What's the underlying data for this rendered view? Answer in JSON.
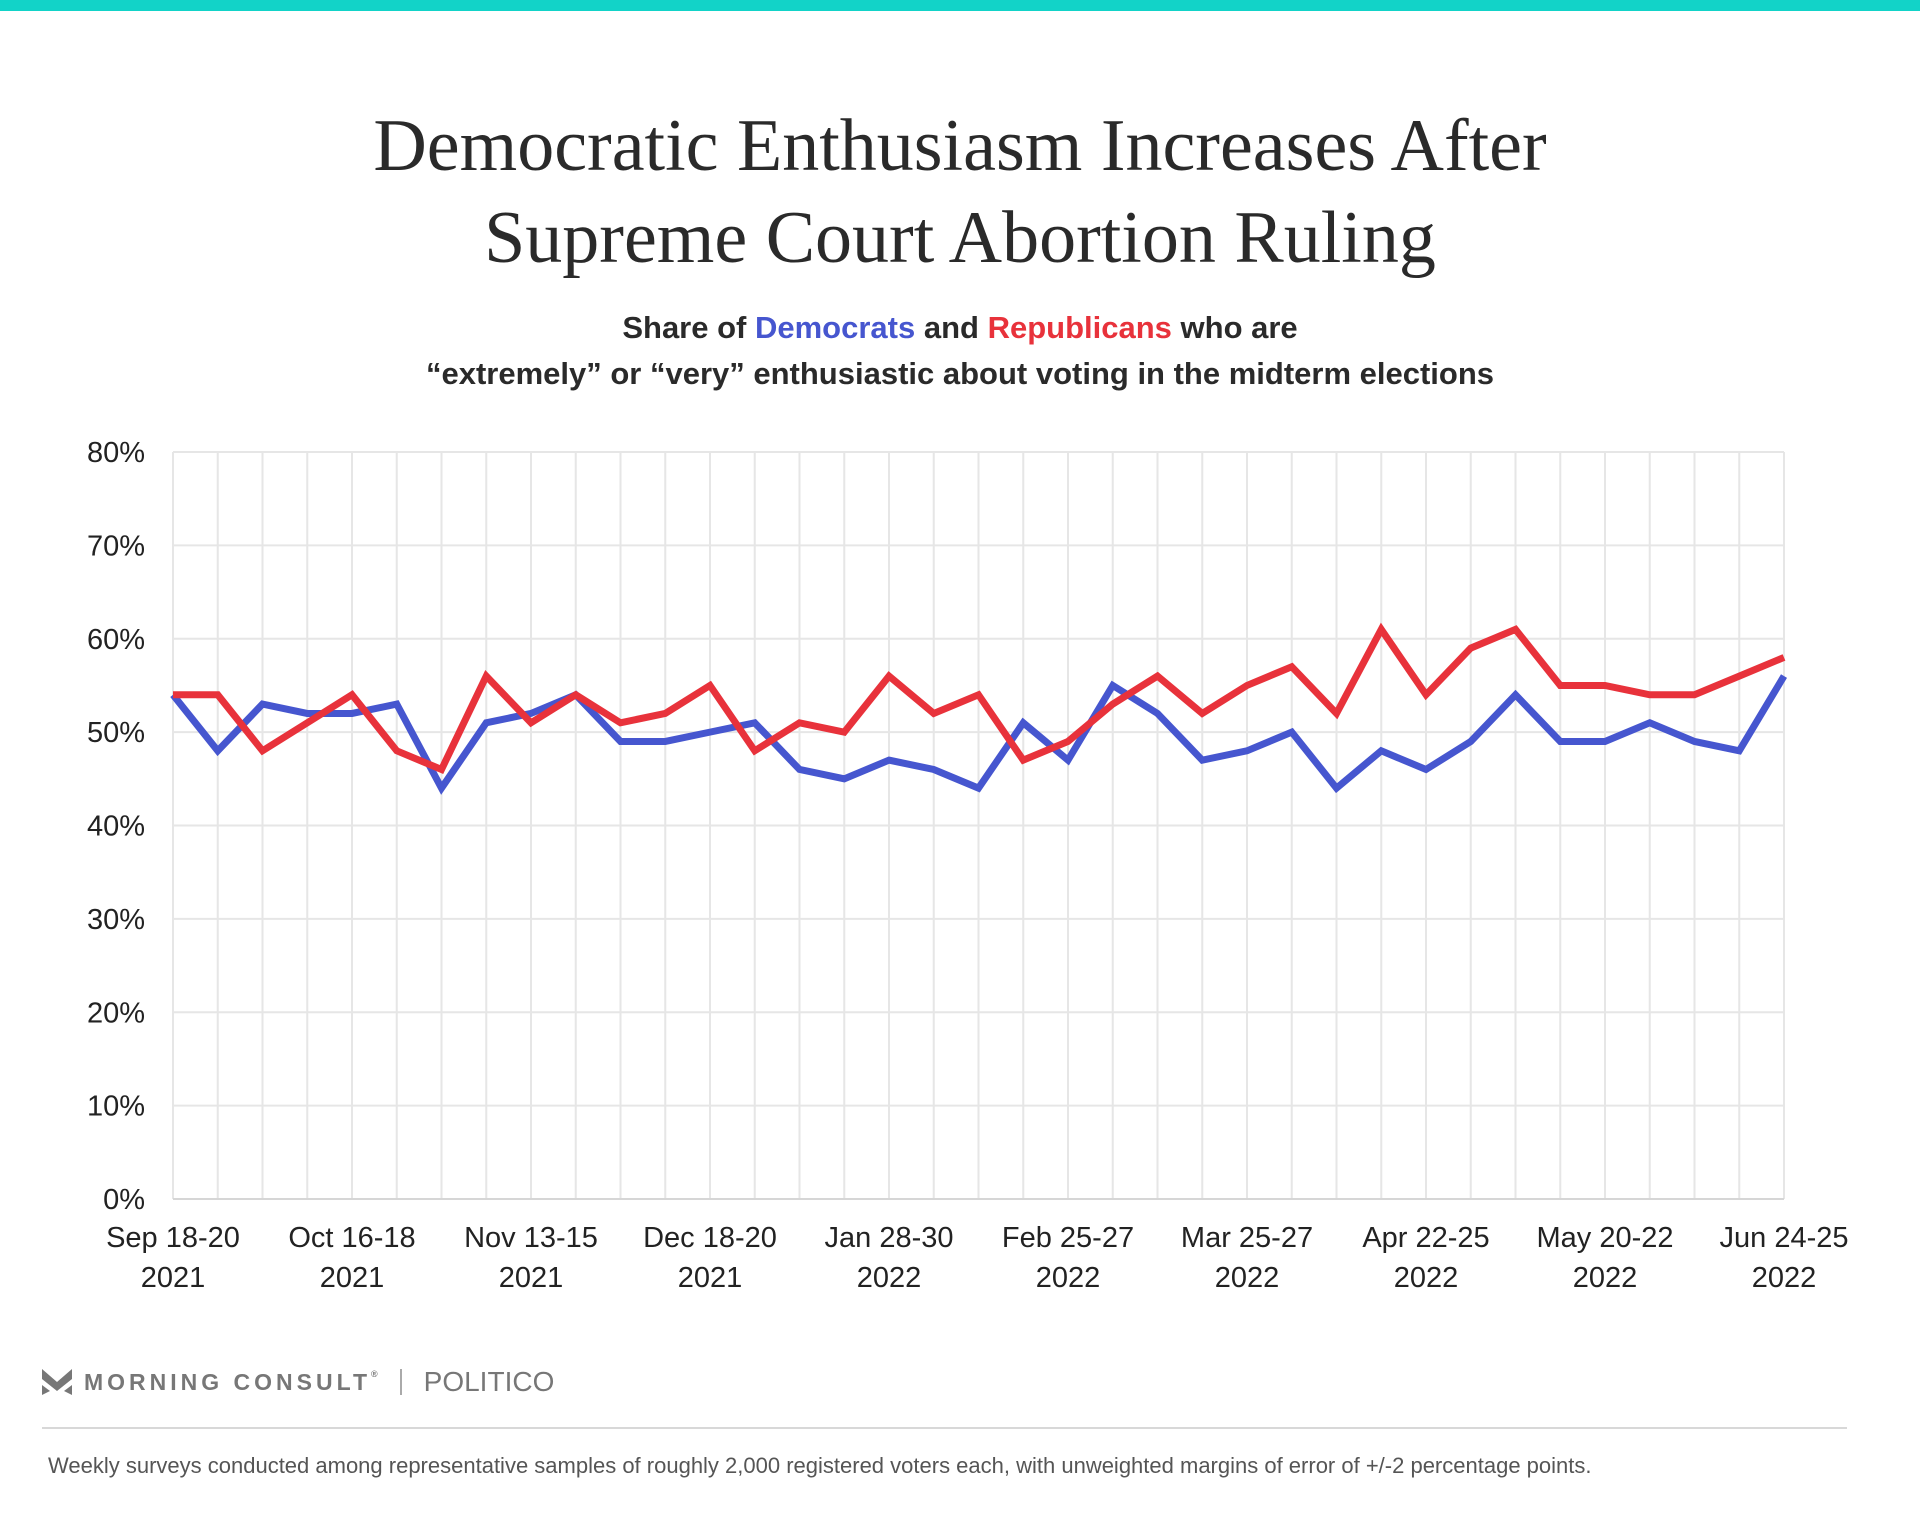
{
  "header": {
    "title_line1": "Democratic Enthusiasm Increases After",
    "title_line2": "Supreme Court Abortion Ruling",
    "subtitle_pre": "Share of ",
    "subtitle_dem": "Democrats",
    "subtitle_mid": " and ",
    "subtitle_rep": "Republicans",
    "subtitle_post": " who are",
    "subtitle_line2": "“extremely” or “very” enthusiastic about voting in the midterm elections"
  },
  "colors": {
    "accent_bar": "#12d3c8",
    "democrats": "#4656cf",
    "republicans": "#e8323b",
    "grid": "#e6e6e6",
    "text": "#222222"
  },
  "chart_data": {
    "type": "line",
    "title": "Democratic Enthusiasm Increases After Supreme Court Abortion Ruling",
    "subtitle": "Share of Democrats and Republicans who are “extremely” or “very” enthusiastic about voting in the midterm elections",
    "xlabel": "",
    "ylabel": "",
    "ylim": [
      0,
      80
    ],
    "yticks": [
      0,
      10,
      20,
      30,
      40,
      50,
      60,
      70,
      80
    ],
    "ytick_labels": [
      "0%",
      "10%",
      "20%",
      "30%",
      "40%",
      "50%",
      "60%",
      "70%",
      "80%"
    ],
    "grid": true,
    "n_points": 37,
    "xtick_labels": [
      {
        "index": 0,
        "line1": "Sep 18-20",
        "line2": "2021"
      },
      {
        "index": 4,
        "line1": "Oct 16-18",
        "line2": "2021"
      },
      {
        "index": 8,
        "line1": "Nov 13-15",
        "line2": "2021"
      },
      {
        "index": 12,
        "line1": "Dec 18-20",
        "line2": "2021"
      },
      {
        "index": 16,
        "line1": "Jan 28-30",
        "line2": "2022"
      },
      {
        "index": 20,
        "line1": "Feb 25-27",
        "line2": "2022"
      },
      {
        "index": 24,
        "line1": "Mar 25-27",
        "line2": "2022"
      },
      {
        "index": 28,
        "line1": "Apr 22-25",
        "line2": "2022"
      },
      {
        "index": 32,
        "line1": "May 20-22",
        "line2": "2022"
      },
      {
        "index": 36,
        "line1": "Jun 24-25",
        "line2": "2022"
      }
    ],
    "series": [
      {
        "name": "Democrats",
        "color": "#4656cf",
        "values": [
          54,
          48,
          53,
          52,
          52,
          53,
          44,
          51,
          52,
          54,
          49,
          49,
          50,
          51,
          46,
          45,
          47,
          46,
          44,
          51,
          47,
          55,
          52,
          47,
          48,
          50,
          44,
          48,
          46,
          49,
          54,
          49,
          49,
          51,
          49,
          48,
          56
        ]
      },
      {
        "name": "Republicans",
        "color": "#e8323b",
        "values": [
          54,
          54,
          48,
          51,
          54,
          48,
          46,
          56,
          51,
          54,
          51,
          52,
          55,
          48,
          51,
          50,
          56,
          52,
          54,
          47,
          49,
          53,
          56,
          52,
          55,
          57,
          52,
          61,
          54,
          59,
          61,
          55,
          55,
          54,
          54,
          56,
          58
        ]
      }
    ]
  },
  "footer": {
    "brand1": "MORNING CONSULT",
    "brand1_mark": "®",
    "brand2": "POLITICO",
    "note": "Weekly surveys conducted among representative samples of roughly 2,000 registered voters each, with unweighted margins of error of +/-2 percentage points."
  }
}
